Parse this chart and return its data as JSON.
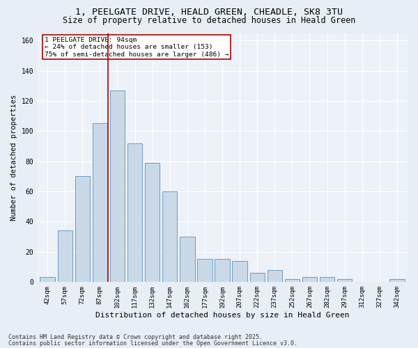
{
  "title1": "1, PEELGATE DRIVE, HEALD GREEN, CHEADLE, SK8 3TU",
  "title2": "Size of property relative to detached houses in Heald Green",
  "xlabel": "Distribution of detached houses by size in Heald Green",
  "ylabel": "Number of detached properties",
  "footnote1": "Contains HM Land Registry data © Crown copyright and database right 2025.",
  "footnote2": "Contains public sector information licensed under the Open Government Licence v3.0.",
  "bar_labels": [
    "42sqm",
    "57sqm",
    "72sqm",
    "87sqm",
    "102sqm",
    "117sqm",
    "132sqm",
    "147sqm",
    "162sqm",
    "177sqm",
    "192sqm",
    "207sqm",
    "222sqm",
    "237sqm",
    "252sqm",
    "267sqm",
    "282sqm",
    "297sqm",
    "312sqm",
    "327sqm",
    "342sqm"
  ],
  "bar_values": [
    3,
    34,
    70,
    105,
    127,
    92,
    79,
    60,
    30,
    15,
    15,
    14,
    6,
    8,
    2,
    3,
    3,
    2,
    0,
    0,
    2
  ],
  "bar_color": "#c9d9e8",
  "bar_edge_color": "#5a8fc0",
  "annotation_box_text": "1 PEELGATE DRIVE: 94sqm\n← 24% of detached houses are smaller (153)\n75% of semi-detached houses are larger (486) →",
  "annotation_box_color": "#aa0000",
  "ylim": [
    0,
    165
  ],
  "yticks": [
    0,
    20,
    40,
    60,
    80,
    100,
    120,
    140,
    160
  ],
  "bg_color": "#e8eef5",
  "plot_bg_color": "#edf1f8",
  "grid_color": "#ffffff",
  "title_fontsize": 9.5,
  "subtitle_fontsize": 8.5,
  "axis_label_fontsize": 8,
  "tick_fontsize": 6.5,
  "annotation_fontsize": 6.8,
  "footnote_fontsize": 6.0,
  "ylabel_fontsize": 7.5
}
